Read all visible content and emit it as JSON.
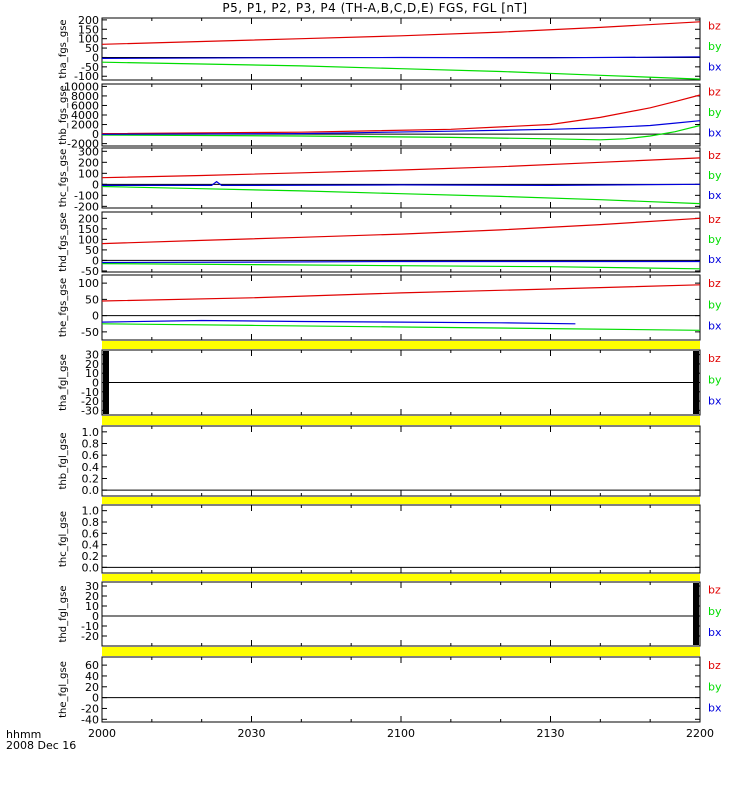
{
  "title": "P5, P1, P2, P3, P4 (TH-A,B,C,D,E) FGS, FGL [nT]",
  "time_axis": {
    "label_line1": "hhmm",
    "label_line2": "2008 Dec 16",
    "ticks": [
      "2000",
      "2030",
      "2100",
      "2130",
      "2200"
    ],
    "range_minutes": [
      0,
      120
    ]
  },
  "colors": {
    "bz": "#e00000",
    "by": "#00dd00",
    "bx": "#0000dd",
    "bar": "#ffff00"
  },
  "chart_data": [
    {
      "type": "line",
      "ylabel": "tha_fgs_gse",
      "ylim": [
        -120,
        210
      ],
      "yticks": [
        "200",
        "150",
        "100",
        "50",
        "0",
        "-50",
        "-100"
      ],
      "ytick_values": [
        200,
        150,
        100,
        50,
        0,
        -50,
        -100
      ],
      "legend": [
        "bz",
        "by",
        "bx"
      ],
      "bar": false,
      "series": [
        {
          "name": "bz",
          "x": [
            0,
            20,
            40,
            60,
            80,
            100,
            120
          ],
          "values": [
            70,
            85,
            100,
            115,
            135,
            160,
            190
          ]
        },
        {
          "name": "by",
          "x": [
            0,
            20,
            40,
            60,
            80,
            100,
            120
          ],
          "values": [
            -25,
            -35,
            -45,
            -60,
            -75,
            -95,
            -115
          ]
        },
        {
          "name": "bx",
          "x": [
            0,
            30,
            60,
            90,
            120
          ],
          "values": [
            -5,
            -2,
            0,
            -2,
            3
          ]
        }
      ]
    },
    {
      "type": "line",
      "ylabel": "thb_fgs_gse",
      "ylim": [
        -2500,
        10500
      ],
      "yticks": [
        "10000",
        "8000",
        "6000",
        "4000",
        "2000",
        "0",
        "-2000"
      ],
      "ytick_values": [
        10000,
        8000,
        6000,
        4000,
        2000,
        0,
        -2000
      ],
      "legend": [
        "bz",
        "by",
        "bx"
      ],
      "bar": false,
      "series": [
        {
          "name": "bz",
          "x": [
            0,
            40,
            70,
            90,
            100,
            110,
            115,
            120
          ],
          "values": [
            100,
            400,
            1000,
            2000,
            3500,
            5500,
            6800,
            8200
          ]
        },
        {
          "name": "by",
          "x": [
            0,
            40,
            70,
            90,
            100,
            105,
            110,
            115,
            120
          ],
          "values": [
            -200,
            -400,
            -700,
            -1000,
            -1200,
            -1000,
            -400,
            500,
            1800
          ]
        },
        {
          "name": "bx",
          "x": [
            0,
            40,
            70,
            90,
            100,
            110,
            115,
            120
          ],
          "values": [
            -50,
            100,
            600,
            1000,
            1300,
            1800,
            2300,
            2800
          ]
        }
      ]
    },
    {
      "type": "line",
      "ylabel": "thc_fgs_gse",
      "ylim": [
        -215,
        330
      ],
      "yticks": [
        "300",
        "200",
        "100",
        "0",
        "-100",
        "-200"
      ],
      "ytick_values": [
        300,
        200,
        100,
        0,
        -100,
        -200
      ],
      "legend": [
        "bz",
        "by",
        "bx"
      ],
      "bar": false,
      "series": [
        {
          "name": "bz",
          "x": [
            0,
            20,
            40,
            60,
            80,
            100,
            120
          ],
          "values": [
            60,
            80,
            105,
            130,
            160,
            200,
            240
          ]
        },
        {
          "name": "by",
          "x": [
            0,
            20,
            40,
            60,
            80,
            100,
            120
          ],
          "values": [
            -20,
            -40,
            -60,
            -85,
            -110,
            -140,
            -175
          ]
        },
        {
          "name": "bx",
          "x": [
            0,
            22,
            23,
            24,
            30,
            60,
            90,
            120
          ],
          "values": [
            -10,
            -10,
            25,
            -10,
            -10,
            -5,
            -10,
            0
          ]
        }
      ]
    },
    {
      "type": "line",
      "ylabel": "thd_fgs_gse",
      "ylim": [
        -55,
        230
      ],
      "yticks": [
        "200",
        "150",
        "100",
        "50",
        "0",
        "-50"
      ],
      "ytick_values": [
        200,
        150,
        100,
        50,
        0,
        -50
      ],
      "legend": [
        "bz",
        "by",
        "bx"
      ],
      "bar": false,
      "series": [
        {
          "name": "bz",
          "x": [
            0,
            20,
            40,
            60,
            80,
            100,
            120
          ],
          "values": [
            80,
            95,
            110,
            125,
            145,
            170,
            200
          ]
        },
        {
          "name": "by",
          "x": [
            0,
            30,
            60,
            90,
            120
          ],
          "values": [
            -15,
            -20,
            -25,
            -30,
            -40
          ]
        },
        {
          "name": "bx",
          "x": [
            0,
            30,
            60,
            90,
            120
          ],
          "values": [
            -10,
            -8,
            -5,
            -5,
            -5
          ]
        }
      ]
    },
    {
      "type": "line",
      "ylabel": "the_fgs_gse",
      "ylim": [
        -75,
        125
      ],
      "yticks": [
        "100",
        "50",
        "0",
        "-50"
      ],
      "ytick_values": [
        100,
        50,
        0,
        -50
      ],
      "legend": [
        "bz",
        "by",
        "bx"
      ],
      "bar": true,
      "series": [
        {
          "name": "bz",
          "x": [
            0,
            30,
            60,
            90,
            120
          ],
          "values": [
            45,
            55,
            70,
            82,
            95
          ]
        },
        {
          "name": "by",
          "x": [
            0,
            30,
            60,
            90,
            120
          ],
          "values": [
            -25,
            -30,
            -35,
            -40,
            -45
          ]
        },
        {
          "name": "bx",
          "x": [
            0,
            20,
            40,
            60,
            80,
            95
          ],
          "values": [
            -20,
            -15,
            -18,
            -20,
            -22,
            -25
          ]
        }
      ]
    },
    {
      "type": "line",
      "ylabel": "tha_fgl_gse",
      "ylim": [
        -35,
        35
      ],
      "yticks": [
        "30",
        "20",
        "10",
        "0",
        "-10",
        "-20",
        "-30"
      ],
      "ytick_values": [
        30,
        20,
        10,
        0,
        -10,
        -20,
        -30
      ],
      "legend": [
        "bz",
        "by",
        "bx"
      ],
      "bar": true,
      "edge_hatch": [
        "left",
        "right"
      ],
      "series": []
    },
    {
      "type": "line",
      "ylabel": "thb_fgl_gse",
      "ylim": [
        -0.1,
        1.1
      ],
      "yticks": [
        "1.0",
        "0.8",
        "0.6",
        "0.4",
        "0.2",
        "0.0"
      ],
      "ytick_values": [
        1.0,
        0.8,
        0.6,
        0.4,
        0.2,
        0.0
      ],
      "legend": [],
      "bar": true,
      "edge_hatch": [],
      "series": []
    },
    {
      "type": "line",
      "ylabel": "thc_fgl_gse",
      "ylim": [
        -0.1,
        1.1
      ],
      "yticks": [
        "1.0",
        "0.8",
        "0.6",
        "0.4",
        "0.2",
        "0.0"
      ],
      "ytick_values": [
        1.0,
        0.8,
        0.6,
        0.4,
        0.2,
        0.0
      ],
      "legend": [],
      "bar": true,
      "edge_hatch": [],
      "series": []
    },
    {
      "type": "line",
      "ylabel": "thd_fgl_gse",
      "ylim": [
        -30,
        34
      ],
      "yticks": [
        "30",
        "20",
        "10",
        "0",
        "-10",
        "-20"
      ],
      "ytick_values": [
        30,
        20,
        10,
        0,
        -10,
        -20
      ],
      "legend": [
        "bz",
        "by",
        "bx"
      ],
      "bar": true,
      "edge_hatch": [
        "right"
      ],
      "series": []
    },
    {
      "type": "line",
      "ylabel": "the_fgl_gse",
      "ylim": [
        -45,
        75
      ],
      "yticks": [
        "60",
        "40",
        "20",
        "0",
        "-20",
        "-40"
      ],
      "ytick_values": [
        60,
        40,
        20,
        0,
        -20,
        -40
      ],
      "legend": [
        "bz",
        "by",
        "bx"
      ],
      "bar": true,
      "edge_hatch": [],
      "series": []
    }
  ]
}
